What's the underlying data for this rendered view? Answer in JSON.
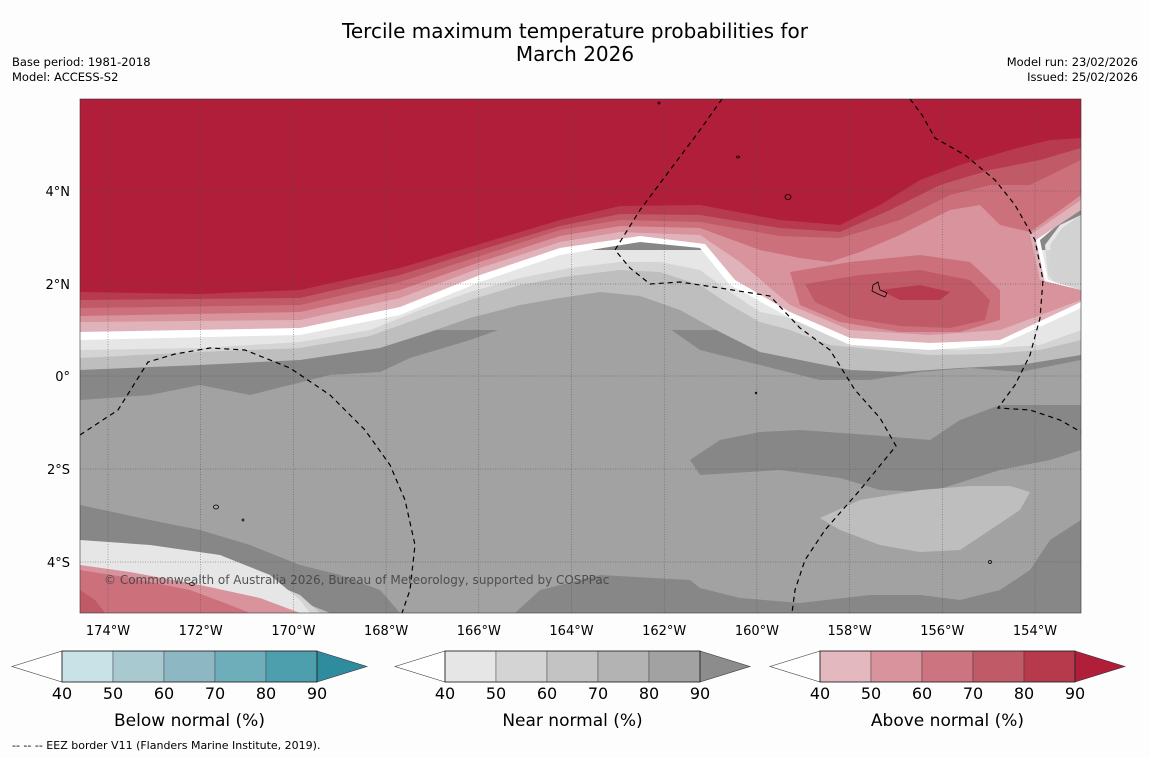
{
  "title": {
    "line1": "Tercile maximum temperature probabilities for",
    "line2": "March 2026"
  },
  "info_left": {
    "base_period": "Base period: 1981-2018",
    "model": "Model: ACCESS-S2"
  },
  "info_right": {
    "model_run": "Model run: 23/02/2026",
    "issued": "Issued: 25/02/2026"
  },
  "map": {
    "lon_labels": [
      "174°W",
      "172°W",
      "170°W",
      "168°W",
      "166°W",
      "164°W",
      "162°W",
      "160°W",
      "158°W",
      "156°W",
      "154°W"
    ],
    "lat_labels": [
      "4°N",
      "2°N",
      "0°",
      "2°S",
      "4°S"
    ],
    "copyright": "© Commonwealth of Australia 2026, Bureau of Meteorology, supported by COSPPac"
  },
  "legends": [
    {
      "title": "Below normal (%)",
      "ticks": [
        "40",
        "50",
        "60",
        "70",
        "80",
        "90"
      ],
      "colors": [
        "#ffffff",
        "#c9e2e8",
        "#a8c9cf",
        "#8db8c3",
        "#6eaebb",
        "#4d9fae",
        "#2e8c9e"
      ]
    },
    {
      "title": "Near normal (%)",
      "ticks": [
        "40",
        "50",
        "60",
        "70",
        "80",
        "90"
      ],
      "colors": [
        "#ffffff",
        "#e6e6e6",
        "#d4d4d4",
        "#c3c3c3",
        "#b3b3b3",
        "#a2a2a2",
        "#8c8c8c"
      ]
    },
    {
      "title": "Above normal (%)",
      "ticks": [
        "40",
        "50",
        "60",
        "70",
        "80",
        "90"
      ],
      "colors": [
        "#ffffff",
        "#e4b8bf",
        "#d8939c",
        "#cc7480",
        "#c15a67",
        "#b73a4c",
        "#b01e3a"
      ]
    }
  ],
  "footnote": "--  --  -- EEZ border V11 (Flanders Marine Institute, 2019)."
}
